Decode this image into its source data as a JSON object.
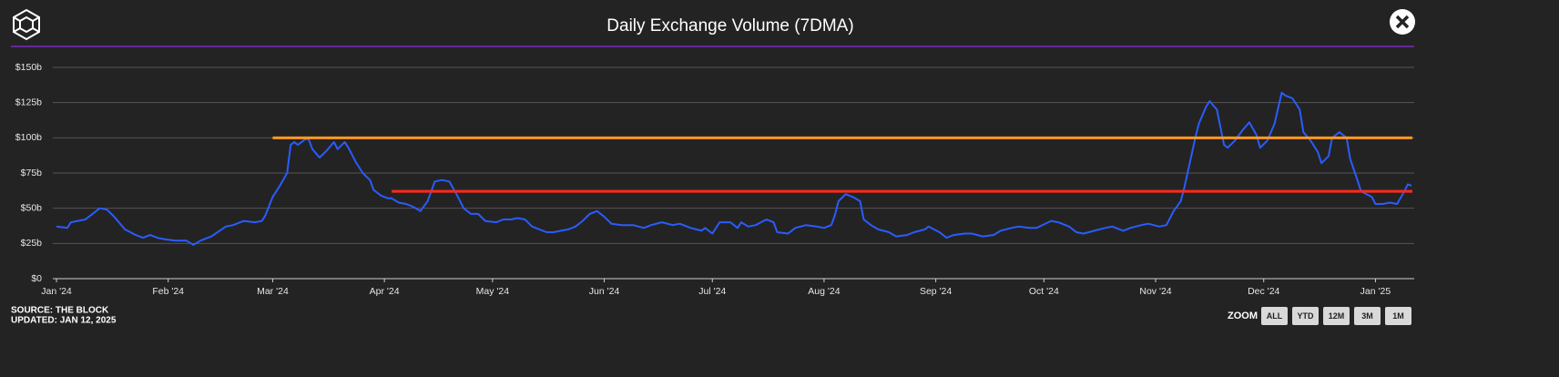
{
  "chart_data": {
    "type": "line",
    "title": "Daily Exchange Volume (7DMA)",
    "source": "SOURCE: THE BLOCK",
    "updated": "UPDATED: JAN 12, 2025",
    "zoom_label": "ZOOM",
    "zoom_buttons": [
      "ALL",
      "YTD",
      "12M",
      "3M",
      "1M"
    ],
    "x": [
      0,
      3,
      4,
      8,
      10,
      12,
      14,
      16,
      19,
      22,
      24,
      26,
      28,
      30,
      33,
      36,
      38,
      40,
      43,
      47,
      49,
      52,
      55,
      57,
      58,
      60,
      62,
      64,
      65,
      66,
      67,
      69,
      70,
      71,
      73,
      75,
      77,
      78,
      80,
      81,
      83,
      85,
      87,
      88,
      90,
      92,
      93,
      95,
      97,
      99,
      101,
      103,
      105,
      107,
      109,
      111,
      113,
      115,
      117,
      119,
      122,
      124,
      126,
      128,
      130,
      132,
      134,
      136,
      138,
      140,
      142,
      144,
      146,
      148,
      150,
      152,
      154,
      157,
      160,
      163,
      165,
      168,
      171,
      173,
      176,
      179,
      180,
      182,
      184,
      187,
      189,
      190,
      192,
      194,
      197,
      199,
      200,
      203,
      205,
      208,
      211,
      213,
      215,
      216,
      217,
      219,
      221,
      223,
      224,
      226,
      228,
      231,
      233,
      236,
      238,
      241,
      242,
      245,
      247,
      249,
      252,
      254,
      257,
      260,
      262,
      265,
      267,
      270,
      272,
      276,
      278,
      281,
      283,
      285,
      288,
      291,
      293,
      296,
      298,
      301,
      303,
      306,
      308,
      310,
      312,
      313,
      316,
      317,
      319,
      320,
      322,
      324,
      325,
      327,
      329,
      331,
      333,
      334,
      336,
      338,
      340,
      341,
      343,
      345,
      346,
      348,
      350,
      351,
      353,
      354,
      356,
      358,
      359,
      361,
      362,
      365,
      366,
      368,
      370,
      372,
      374,
      375,
      376
    ],
    "series": [
      {
        "color": "#2a5cff",
        "values": [
          37,
          36,
          40,
          42,
          46,
          50,
          49,
          44,
          35,
          31,
          29,
          31,
          29,
          28,
          27,
          27,
          24,
          27,
          30,
          37,
          38,
          41,
          40,
          41,
          45,
          58,
          66,
          75,
          95,
          97,
          95,
          99,
          99,
          92,
          86,
          91,
          97,
          92,
          97,
          93,
          83,
          75,
          70,
          63,
          59,
          57,
          57,
          54,
          53,
          51,
          48,
          55,
          69,
          70,
          69,
          60,
          50,
          46,
          46,
          41,
          40,
          42,
          42,
          43,
          42,
          37,
          35,
          33,
          33,
          34,
          35,
          37,
          41,
          46,
          48,
          44,
          39,
          38,
          38,
          36,
          38,
          40,
          38,
          39,
          36,
          34,
          36,
          32,
          40,
          40,
          36,
          40,
          37,
          38,
          42,
          40,
          33,
          32,
          36,
          38,
          37,
          36,
          38,
          45,
          55,
          60,
          58,
          55,
          42,
          38,
          35,
          33,
          30,
          31,
          33,
          35,
          37,
          33,
          29,
          31,
          32,
          32,
          30,
          31,
          34,
          36,
          37,
          36,
          36,
          41,
          40,
          37,
          33,
          32,
          34,
          36,
          37,
          34,
          36,
          38,
          39,
          37,
          38,
          48,
          55,
          65,
          100,
          110,
          122,
          126,
          120,
          95,
          93,
          98,
          105,
          111,
          102,
          93,
          98,
          110,
          132,
          130,
          128,
          120,
          104,
          98,
          90,
          82,
          87,
          100,
          104,
          100,
          85,
          70,
          62,
          58,
          53,
          53,
          54,
          53,
          62,
          67,
          66
        ]
      }
    ],
    "reference_lines": [
      {
        "value": 100,
        "x_start": 60,
        "color": "#ff9a1f"
      },
      {
        "value": 62,
        "x_start": 93,
        "color": "#ff2a1a"
      }
    ],
    "xlim": [
      0,
      376
    ],
    "xticks": [
      {
        "value": 0,
        "label": "Jan '24"
      },
      {
        "value": 31,
        "label": "Feb '24"
      },
      {
        "value": 60,
        "label": "Mar '24"
      },
      {
        "value": 91,
        "label": "Apr '24"
      },
      {
        "value": 121,
        "label": "May '24"
      },
      {
        "value": 152,
        "label": "Jun '24"
      },
      {
        "value": 182,
        "label": "Jul '24"
      },
      {
        "value": 213,
        "label": "Aug '24"
      },
      {
        "value": 244,
        "label": "Sep '24"
      },
      {
        "value": 274,
        "label": "Oct '24"
      },
      {
        "value": 305,
        "label": "Nov '24"
      },
      {
        "value": 335,
        "label": "Dec '24"
      },
      {
        "value": 366,
        "label": "Jan '25"
      }
    ],
    "ylim": [
      0,
      150
    ],
    "yticks": [
      {
        "value": 0,
        "label": "$0"
      },
      {
        "value": 25,
        "label": "$25b"
      },
      {
        "value": 50,
        "label": "$50b"
      },
      {
        "value": 75,
        "label": "$75b"
      },
      {
        "value": 100,
        "label": "$100b"
      },
      {
        "value": 125,
        "label": "$125b"
      },
      {
        "value": 150,
        "label": "$150b"
      }
    ],
    "grid": true
  }
}
